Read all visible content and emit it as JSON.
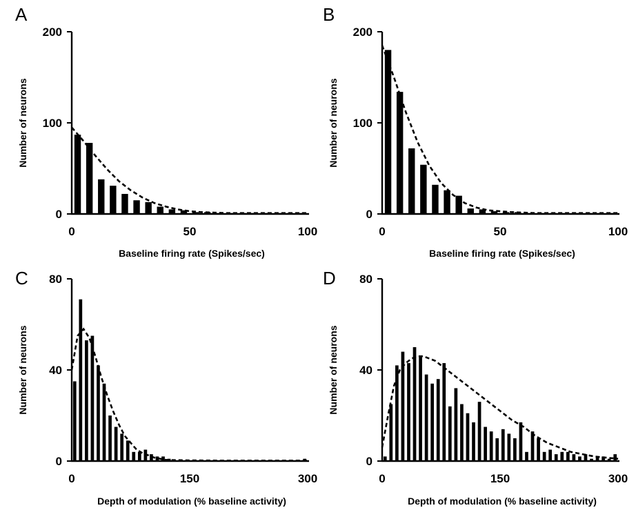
{
  "colors": {
    "bars": "#000000",
    "fit": "#000000",
    "background": "#ffffff"
  },
  "chart_data": [
    {
      "panel": "A",
      "type": "bar",
      "xlabel": "Baseline firing rate (Spikes/sec)",
      "ylabel": "Number of neurons",
      "xlim": [
        0,
        100
      ],
      "ylim": [
        0,
        200
      ],
      "xticks": [
        "0",
        "50",
        "100"
      ],
      "yticks": [
        "0",
        "100",
        "200"
      ],
      "bin_width": 5,
      "x": [
        2.5,
        7.5,
        12.5,
        17.5,
        22.5,
        27.5,
        32.5,
        37.5,
        42.5,
        47.5,
        52.5,
        57.5,
        62.5,
        67.5,
        72.5,
        77.5,
        82.5,
        87.5,
        92.5,
        97.5
      ],
      "values": [
        87,
        78,
        38,
        31,
        22,
        15,
        13,
        8,
        5,
        4,
        2,
        2,
        1,
        1,
        1,
        1,
        1,
        1,
        1,
        1
      ],
      "fit": {
        "style": "dashed",
        "x": [
          0,
          5,
          10,
          15,
          20,
          25,
          30,
          35,
          40,
          45,
          50,
          55,
          60,
          65,
          70,
          75,
          80,
          85,
          90,
          95,
          100
        ],
        "y": [
          95,
          80,
          64,
          49,
          36,
          26,
          18,
          12,
          8,
          5,
          3,
          2,
          1.5,
          1,
          1,
          1,
          1,
          1,
          1,
          1,
          1
        ]
      },
      "grid": false,
      "legend": "none"
    },
    {
      "panel": "B",
      "type": "bar",
      "xlabel": "Baseline firing rate (Spikes/sec)",
      "ylabel": "Number of neurons",
      "xlim": [
        0,
        100
      ],
      "ylim": [
        0,
        200
      ],
      "xticks": [
        "0",
        "50",
        "100"
      ],
      "yticks": [
        "0",
        "100",
        "200"
      ],
      "bin_width": 5,
      "x": [
        2.5,
        7.5,
        12.5,
        17.5,
        22.5,
        27.5,
        32.5,
        37.5,
        42.5,
        47.5,
        52.5,
        57.5,
        62.5,
        67.5,
        72.5,
        77.5,
        82.5,
        87.5,
        92.5,
        97.5
      ],
      "values": [
        180,
        134,
        72,
        54,
        32,
        26,
        20,
        6,
        5,
        3,
        2,
        2,
        1,
        1,
        1,
        1,
        1,
        1,
        1,
        1
      ],
      "fit": {
        "style": "dashed",
        "x": [
          0,
          5,
          10,
          15,
          20,
          25,
          30,
          35,
          40,
          45,
          50,
          55,
          60,
          65,
          70,
          75,
          80,
          85,
          90,
          95,
          100
        ],
        "y": [
          185,
          150,
          112,
          79,
          53,
          34,
          21,
          12,
          7,
          4,
          3,
          2,
          1.5,
          1,
          1,
          1,
          1,
          1,
          1,
          1,
          1
        ]
      },
      "grid": false,
      "legend": "none"
    },
    {
      "panel": "C",
      "type": "bar",
      "xlabel": "Depth of modulation (% baseline activity)",
      "ylabel": "Number of neurons",
      "xlim": [
        0,
        300
      ],
      "ylim": [
        0,
        80
      ],
      "xticks": [
        "0",
        "150",
        "300"
      ],
      "yticks": [
        "0",
        "40",
        "80"
      ],
      "bin_width": 7.5,
      "x": [
        3.75,
        11.25,
        18.75,
        26.25,
        33.75,
        41.25,
        48.75,
        56.25,
        63.75,
        71.25,
        78.75,
        86.25,
        93.75,
        101.25,
        108.75,
        116.25,
        123.75,
        131.25,
        138.75,
        146.25,
        153.75,
        161.25,
        168.75,
        176.25,
        183.75,
        191.25,
        198.75,
        206.25,
        213.75,
        221.25,
        228.75,
        236.25,
        243.75,
        251.25,
        258.75,
        266.25,
        273.75,
        281.25,
        288.75,
        296.25
      ],
      "values": [
        35,
        71,
        53,
        55,
        42,
        34,
        20,
        15,
        12,
        9,
        4,
        4,
        5,
        3,
        2,
        2,
        1,
        0,
        0,
        0,
        0,
        0,
        0,
        0,
        0,
        0,
        0,
        0,
        0,
        0,
        0,
        0,
        0,
        0,
        0,
        0,
        0,
        0,
        0,
        1
      ],
      "fit": {
        "style": "dashed",
        "x": [
          0,
          7.5,
          15,
          22.5,
          30,
          37.5,
          45,
          52.5,
          60,
          67.5,
          75,
          82.5,
          90,
          97.5,
          105,
          112.5,
          120,
          150,
          200,
          250,
          300
        ],
        "y": [
          40,
          55,
          58,
          54,
          46,
          37,
          29,
          22,
          16,
          11,
          8,
          5,
          3.5,
          2.5,
          1.5,
          1,
          0.5,
          0.3,
          0.2,
          0.2,
          0.2
        ]
      },
      "grid": false,
      "legend": "none"
    },
    {
      "panel": "D",
      "type": "bar",
      "xlabel": "Depth of modulation (% baseline activity)",
      "ylabel": "Number of neurons",
      "xlim": [
        0,
        300
      ],
      "ylim": [
        0,
        80
      ],
      "xticks": [
        "0",
        "150",
        "300"
      ],
      "yticks": [
        "0",
        "40",
        "80"
      ],
      "bin_width": 7.5,
      "x": [
        3.75,
        11.25,
        18.75,
        26.25,
        33.75,
        41.25,
        48.75,
        56.25,
        63.75,
        71.25,
        78.75,
        86.25,
        93.75,
        101.25,
        108.75,
        116.25,
        123.75,
        131.25,
        138.75,
        146.25,
        153.75,
        161.25,
        168.75,
        176.25,
        183.75,
        191.25,
        198.75,
        206.25,
        213.75,
        221.25,
        228.75,
        236.25,
        243.75,
        251.25,
        258.75,
        266.25,
        273.75,
        281.25,
        288.75,
        296.25
      ],
      "values": [
        2,
        25,
        42,
        48,
        43,
        50,
        46,
        38,
        34,
        36,
        43,
        24,
        32,
        25,
        21,
        17,
        26,
        15,
        13,
        10,
        14,
        12,
        10,
        17,
        4,
        13,
        10,
        4,
        5,
        3,
        4,
        4,
        3,
        2,
        3,
        1,
        2,
        2,
        1,
        3
      ],
      "fit": {
        "style": "dashed",
        "x": [
          0,
          7.5,
          15,
          22.5,
          30,
          37.5,
          45,
          52.5,
          60,
          67.5,
          75,
          82.5,
          90,
          97.5,
          105,
          112.5,
          120,
          135,
          150,
          165,
          180,
          195,
          210,
          225,
          240,
          255,
          270,
          285,
          300
        ],
        "y": [
          6,
          20,
          33,
          40,
          43,
          45,
          46,
          46,
          45,
          44,
          42,
          40,
          38,
          36,
          34,
          32,
          30,
          26,
          22,
          18,
          15,
          11,
          8,
          6,
          4,
          3,
          2,
          1.5,
          1
        ]
      },
      "grid": false,
      "legend": "none"
    }
  ]
}
